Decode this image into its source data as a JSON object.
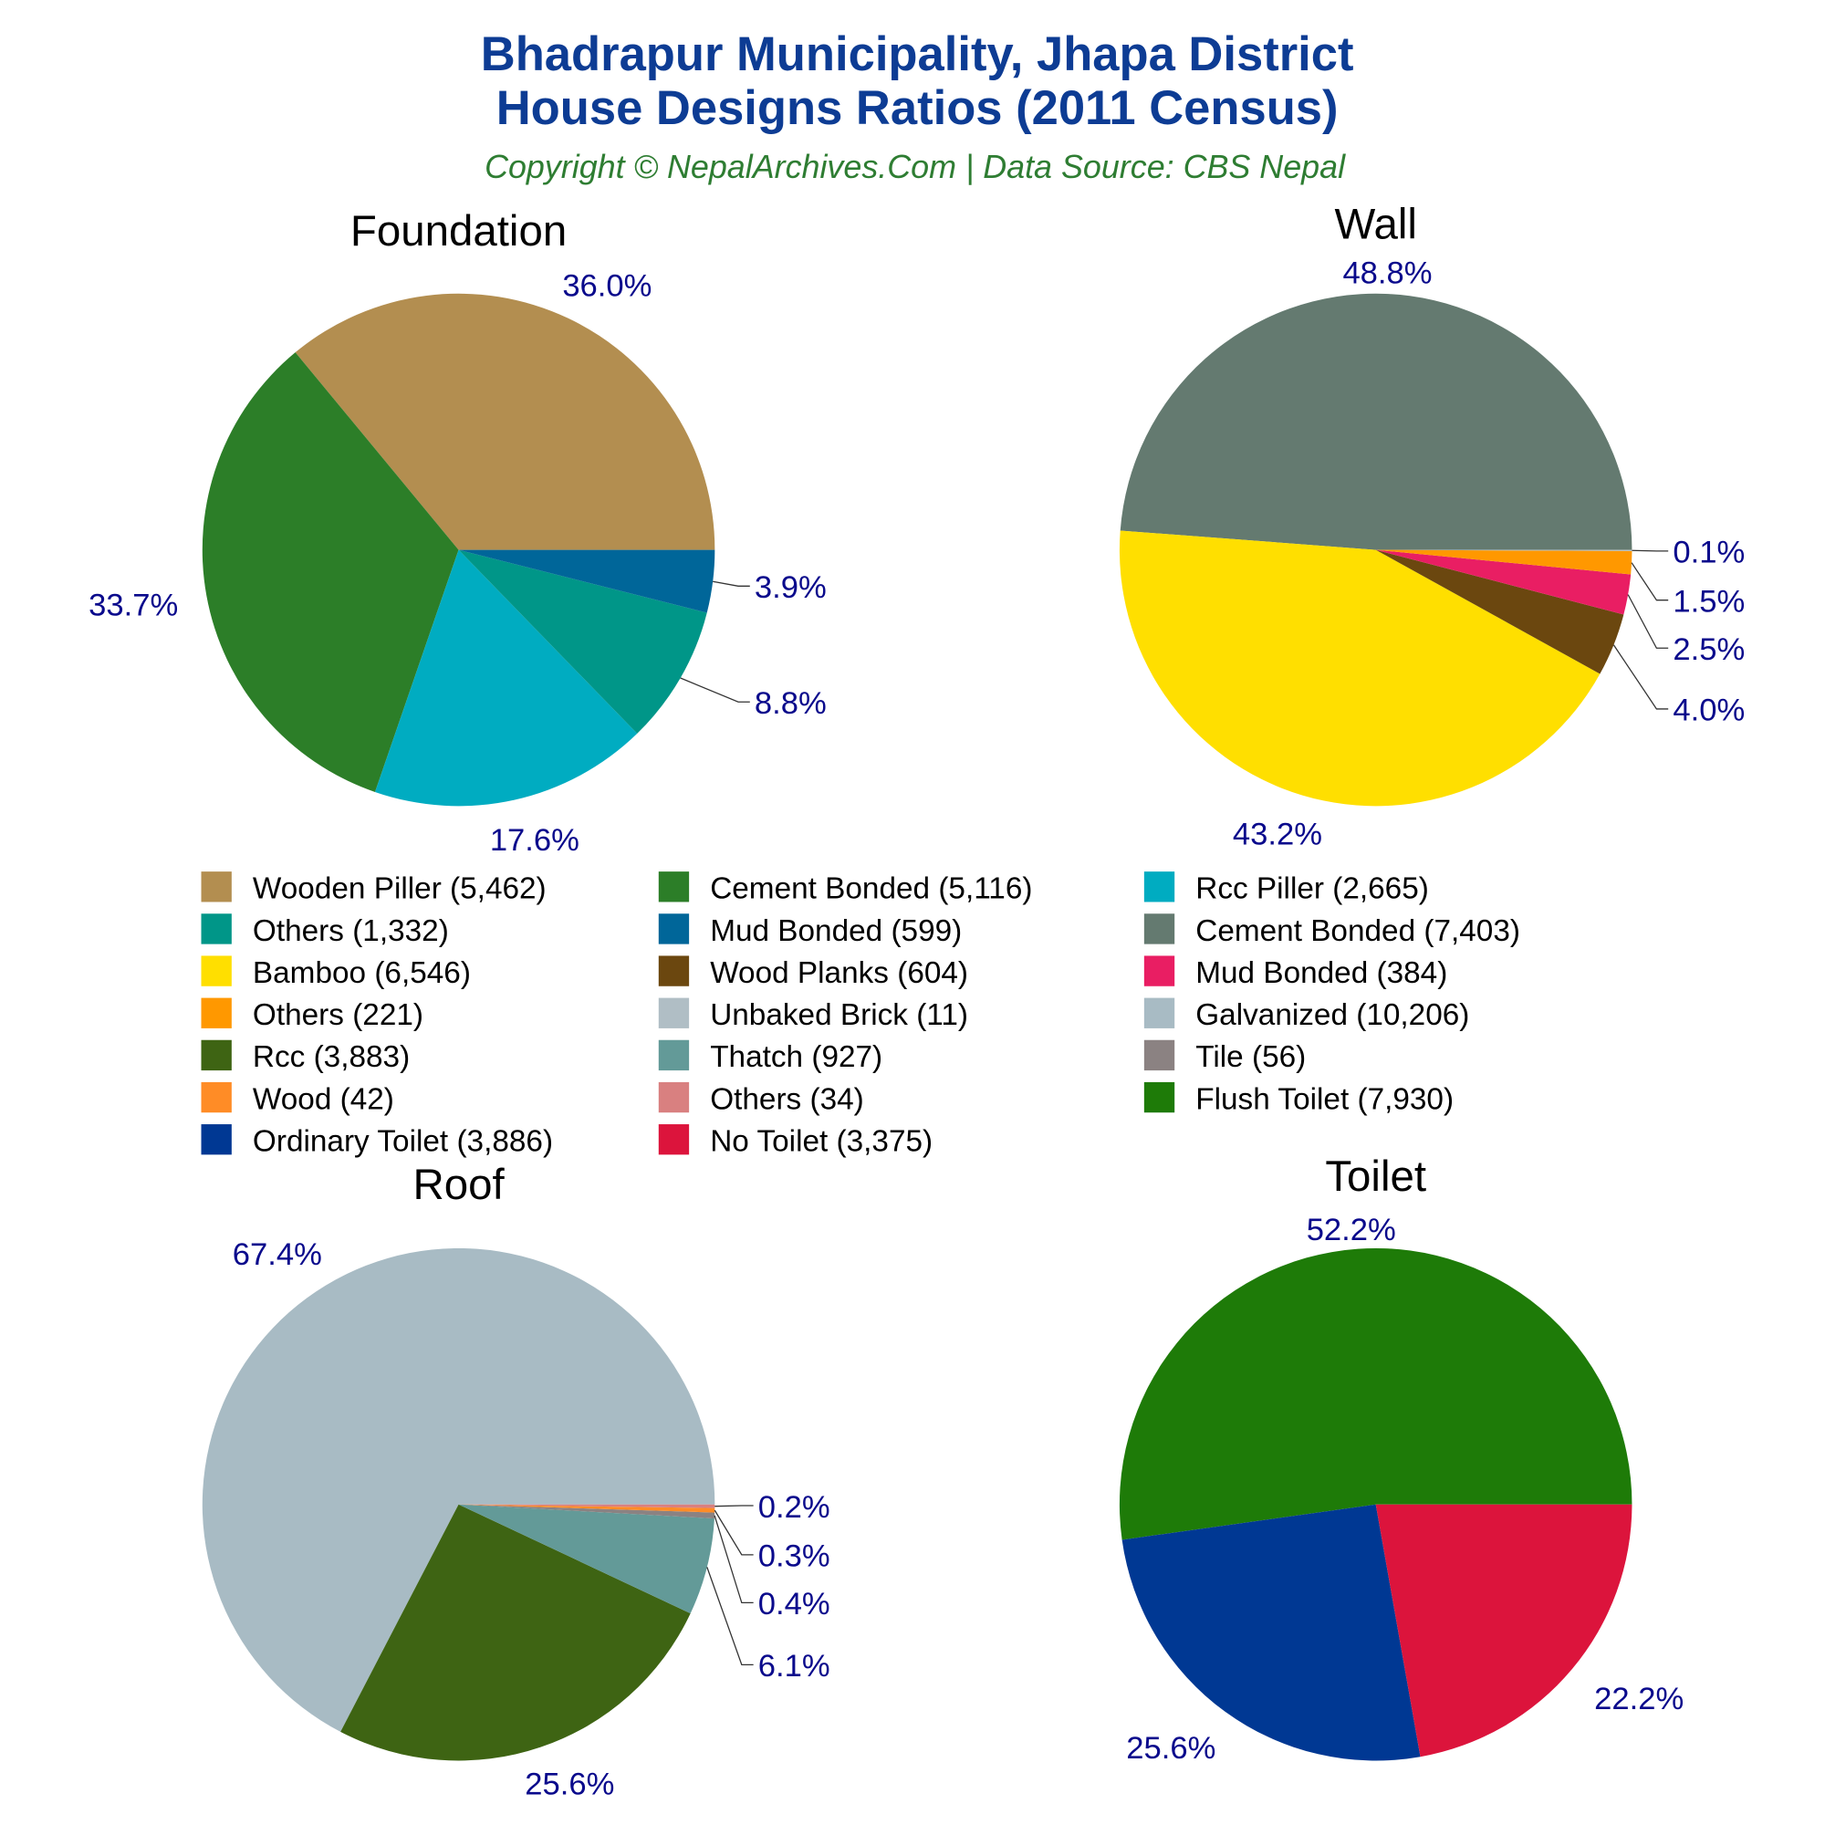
{
  "title_line1": "Bhadrapur Municipality, Jhapa District",
  "title_line2": "House Designs Ratios (2011 Census)",
  "subtitle": "Copyright © NepalArchives.Com | Data Source: CBS Nepal",
  "colors": {
    "title": "#0D3C94",
    "subtitle": "#2E7D32",
    "pct_label": "#0A0A8C"
  },
  "chart_data": [
    {
      "type": "pie",
      "title": "Foundation",
      "slices": [
        {
          "name": "Wooden Piller",
          "value": 5462,
          "pct": "36.0%",
          "color": "#B38E50"
        },
        {
          "name": "Cement Bonded",
          "value": 5116,
          "pct": "33.7%",
          "color": "#2C7E28"
        },
        {
          "name": "Rcc Piller",
          "value": 2665,
          "pct": "17.6%",
          "color": "#00ACC1"
        },
        {
          "name": "Others",
          "value": 1332,
          "pct": "8.8%",
          "color": "#009688"
        },
        {
          "name": "Mud Bonded",
          "value": 599,
          "pct": "3.9%",
          "color": "#006699"
        }
      ]
    },
    {
      "type": "pie",
      "title": "Wall",
      "slices": [
        {
          "name": "Cement Bonded",
          "value": 7403,
          "pct": "48.8%",
          "color": "#647A70"
        },
        {
          "name": "Bamboo",
          "value": 6546,
          "pct": "43.2%",
          "color": "#FFDF00"
        },
        {
          "name": "Wood Planks",
          "value": 604,
          "pct": "4.0%",
          "color": "#6B470F"
        },
        {
          "name": "Mud Bonded",
          "value": 384,
          "pct": "2.5%",
          "color": "#E91E63"
        },
        {
          "name": "Others",
          "value": 221,
          "pct": "1.5%",
          "color": "#FF9800"
        },
        {
          "name": "Unbaked Brick",
          "value": 11,
          "pct": "0.1%",
          "color": "#B0BEC5"
        }
      ]
    },
    {
      "type": "pie",
      "title": "Roof",
      "slices": [
        {
          "name": "Galvanized",
          "value": 10206,
          "pct": "67.4%",
          "color": "#A8BBC4"
        },
        {
          "name": "Rcc",
          "value": 3883,
          "pct": "25.6%",
          "color": "#3E6413"
        },
        {
          "name": "Thatch",
          "value": 927,
          "pct": "6.1%",
          "color": "#639A98"
        },
        {
          "name": "Tile",
          "value": 56,
          "pct": "0.4%",
          "color": "#8B8282"
        },
        {
          "name": "Wood",
          "value": 42,
          "pct": "0.3%",
          "color": "#FF8C26"
        },
        {
          "name": "Others",
          "value": 34,
          "pct": "0.2%",
          "color": "#D98080"
        }
      ]
    },
    {
      "type": "pie",
      "title": "Toilet",
      "slices": [
        {
          "name": "Flush Toilet",
          "value": 7930,
          "pct": "52.2%",
          "color": "#1E7B08"
        },
        {
          "name": "Ordinary Toilet",
          "value": 3886,
          "pct": "25.6%",
          "color": "#003893"
        },
        {
          "name": "No Toilet",
          "value": 3375,
          "pct": "22.2%",
          "color": "#DC143C"
        }
      ]
    }
  ],
  "legend": [
    {
      "label": "Wooden Piller (5,462)",
      "color": "#B38E50"
    },
    {
      "label": "Cement Bonded (5,116)",
      "color": "#2C7E28"
    },
    {
      "label": "Rcc Piller (2,665)",
      "color": "#00ACC1"
    },
    {
      "label": "Others (1,332)",
      "color": "#009688"
    },
    {
      "label": "Mud Bonded (599)",
      "color": "#006699"
    },
    {
      "label": "Cement Bonded (7,403)",
      "color": "#647A70"
    },
    {
      "label": "Bamboo (6,546)",
      "color": "#FFDF00"
    },
    {
      "label": "Wood Planks (604)",
      "color": "#6B470F"
    },
    {
      "label": "Mud Bonded (384)",
      "color": "#E91E63"
    },
    {
      "label": "Others (221)",
      "color": "#FF9800"
    },
    {
      "label": "Unbaked Brick (11)",
      "color": "#B0BEC5"
    },
    {
      "label": "Galvanized (10,206)",
      "color": "#A8BBC4"
    },
    {
      "label": "Rcc (3,883)",
      "color": "#3E6413"
    },
    {
      "label": "Thatch (927)",
      "color": "#639A98"
    },
    {
      "label": "Tile (56)",
      "color": "#8B8282"
    },
    {
      "label": "Wood (42)",
      "color": "#FF8C26"
    },
    {
      "label": "Others (34)",
      "color": "#D98080"
    },
    {
      "label": "Flush Toilet (7,930)",
      "color": "#1E7B08"
    },
    {
      "label": "Ordinary Toilet (3,886)",
      "color": "#003893"
    },
    {
      "label": "No Toilet (3,375)",
      "color": "#DC143C"
    }
  ]
}
